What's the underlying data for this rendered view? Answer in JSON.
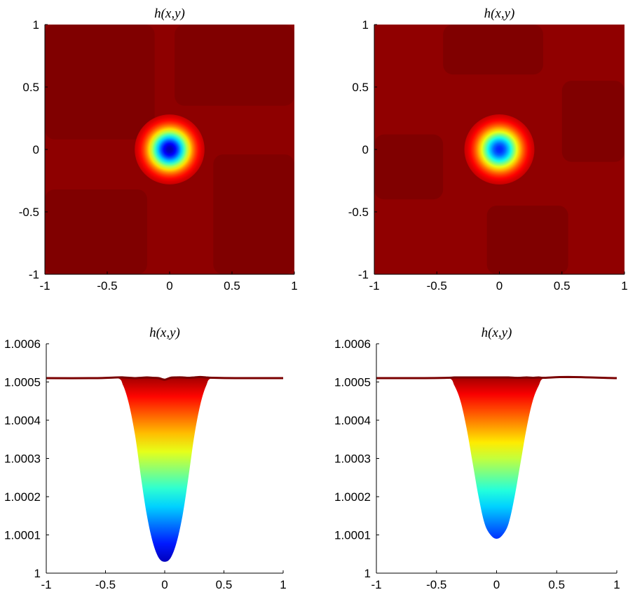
{
  "chart_data": [
    {
      "type": "heatmap",
      "title": "h(x,y)",
      "xlim": [
        -1,
        1
      ],
      "ylim": [
        -1,
        1
      ],
      "xticks": [
        "-1",
        "-0.5",
        "0",
        "0.5",
        "1"
      ],
      "yticks": [
        "-1",
        "-0.5",
        "0",
        "0.5",
        "1"
      ],
      "colormap": "jet",
      "center": [
        0,
        0
      ],
      "background_value": 1.0005,
      "min_value": 1.00003,
      "well_radius": 0.25,
      "colors": {
        "background": "#8e0000",
        "background_dark": "#800000"
      }
    },
    {
      "type": "heatmap",
      "title": "h(x,y)",
      "xlim": [
        -1,
        1
      ],
      "ylim": [
        -1,
        1
      ],
      "xticks": [
        "-1",
        "-0.5",
        "0",
        "0.5",
        "1"
      ],
      "yticks": [
        "-1",
        "-0.5",
        "0",
        "0.5",
        "1"
      ],
      "colormap": "jet",
      "center": [
        0,
        0
      ],
      "background_value": 1.0005,
      "min_value": 1.00009,
      "well_radius": 0.25,
      "colors": {
        "background": "#900000",
        "background_dark": "#800000"
      }
    },
    {
      "type": "area",
      "title": "h(x,y)",
      "xlim": [
        -1,
        1
      ],
      "ylim": [
        1,
        1.0006
      ],
      "xticks": [
        "-1",
        "-0.5",
        "0",
        "0.5",
        "1"
      ],
      "yticks": [
        "1",
        "1.0001",
        "1.0002",
        "1.0003",
        "1.0004",
        "1.0005",
        "1.0006"
      ],
      "colormap": "jet",
      "x": [
        -1,
        -0.6,
        -0.4,
        -0.35,
        -0.3,
        -0.25,
        -0.2,
        -0.15,
        -0.1,
        -0.05,
        0,
        0.05,
        0.1,
        0.15,
        0.2,
        0.25,
        0.3,
        0.35,
        0.4,
        0.6,
        1
      ],
      "y": [
        1.00051,
        1.00051,
        1.00051,
        1.00049,
        1.00044,
        1.00036,
        1.00025,
        1.00015,
        1.00008,
        1.00004,
        1.00003,
        1.00004,
        1.00008,
        1.00015,
        1.00025,
        1.00036,
        1.00044,
        1.00049,
        1.00051,
        1.00051,
        1.00051
      ],
      "top_y": [
        1.00051,
        1.00051,
        1.000512,
        1.000512,
        1.000511,
        1.00051,
        1.000511,
        1.000512,
        1.000511,
        1.00051,
        1.000506,
        1.000511,
        1.000512,
        1.000512,
        1.000511,
        1.000512,
        1.000513,
        1.000512,
        1.000511,
        1.00051,
        1.00051
      ]
    },
    {
      "type": "area",
      "title": "h(x,y)",
      "xlim": [
        -1,
        1
      ],
      "ylim": [
        1,
        1.0006
      ],
      "xticks": [
        "-1",
        "-0.5",
        "0",
        "0.5",
        "1"
      ],
      "yticks": [
        "1",
        "1.0001",
        "1.0002",
        "1.0003",
        "1.0004",
        "1.0005",
        "1.0006"
      ],
      "colormap": "jet",
      "x": [
        -1,
        -0.6,
        -0.4,
        -0.35,
        -0.3,
        -0.25,
        -0.2,
        -0.15,
        -0.1,
        -0.05,
        0,
        0.05,
        0.1,
        0.15,
        0.2,
        0.25,
        0.3,
        0.35,
        0.4,
        0.6,
        1
      ],
      "y": [
        1.00051,
        1.00051,
        1.00051,
        1.00049,
        1.00045,
        1.00038,
        1.00029,
        1.0002,
        1.00013,
        1.0001,
        1.00009,
        1.0001,
        1.00013,
        1.0002,
        1.00029,
        1.00038,
        1.00045,
        1.00049,
        1.00051,
        1.00051,
        1.00051
      ],
      "top_y": [
        1.00051,
        1.00051,
        1.000511,
        1.000512,
        1.000512,
        1.000512,
        1.000512,
        1.000512,
        1.000512,
        1.000512,
        1.000512,
        1.000512,
        1.000512,
        1.000511,
        1.000511,
        1.000512,
        1.000511,
        1.000512,
        1.000511,
        1.000513,
        1.00051
      ]
    }
  ]
}
